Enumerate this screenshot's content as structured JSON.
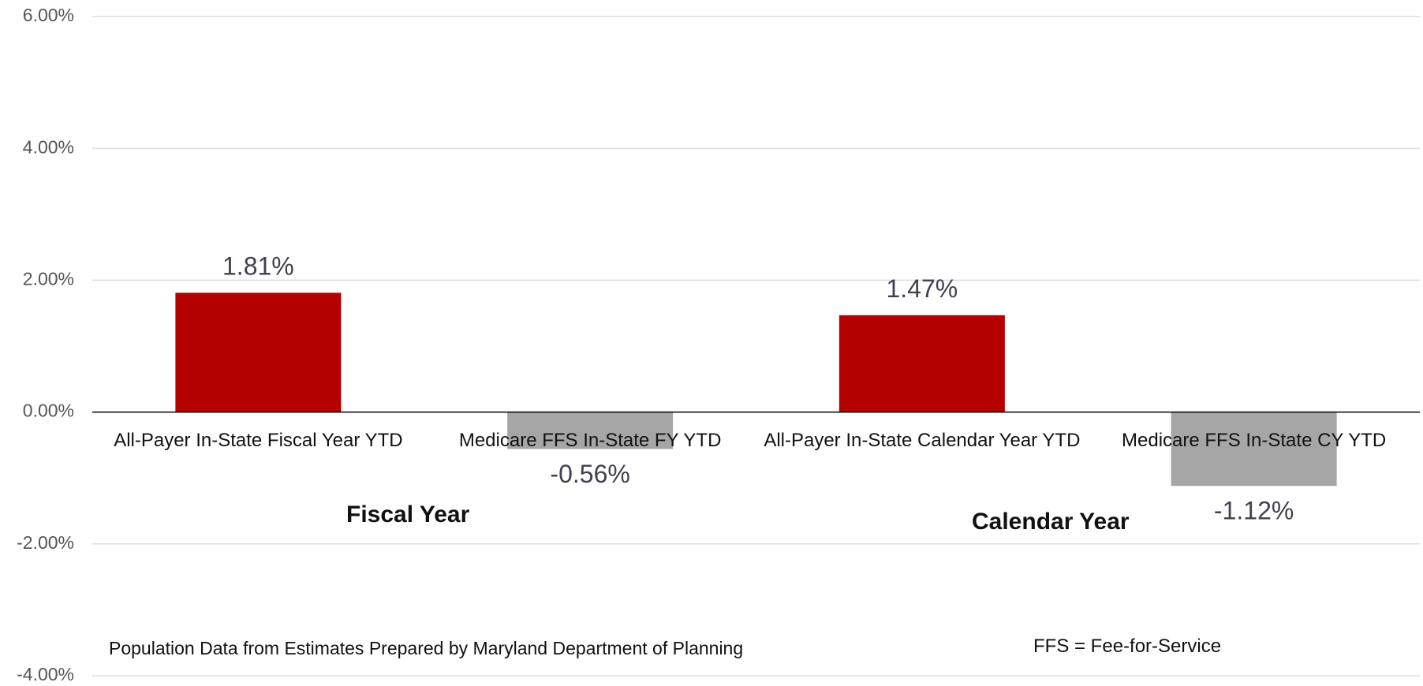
{
  "chart_data": {
    "type": "bar",
    "categories": [
      "All-Payer In-State Fiscal Year YTD",
      "Medicare FFS In-State FY YTD",
      "All-Payer In-State Calendar Year YTD",
      "Medicare FFS In-State CY YTD"
    ],
    "values": [
      1.81,
      -0.56,
      1.47,
      -1.12
    ],
    "value_labels": [
      "1.81%",
      "-0.56%",
      "1.47%",
      "-1.12%"
    ],
    "colors": [
      "#b50000",
      "#a6a6a6",
      "#b50000",
      "#a6a6a6"
    ],
    "ylim": [
      -4,
      6
    ],
    "yticks": [
      {
        "value": -4,
        "label": "-4.00%"
      },
      {
        "value": -2,
        "label": "-2.00%"
      },
      {
        "value": 0,
        "label": "0.00%"
      },
      {
        "value": 2,
        "label": "2.00%"
      },
      {
        "value": 4,
        "label": "4.00%"
      },
      {
        "value": 6,
        "label": "6.00%"
      }
    ],
    "grid": true,
    "annotations": [
      "Fiscal Year",
      "Calendar Year",
      "Population Data from Estimates Prepared by Maryland Department of Planning",
      "FFS = Fee-for-Service"
    ]
  }
}
